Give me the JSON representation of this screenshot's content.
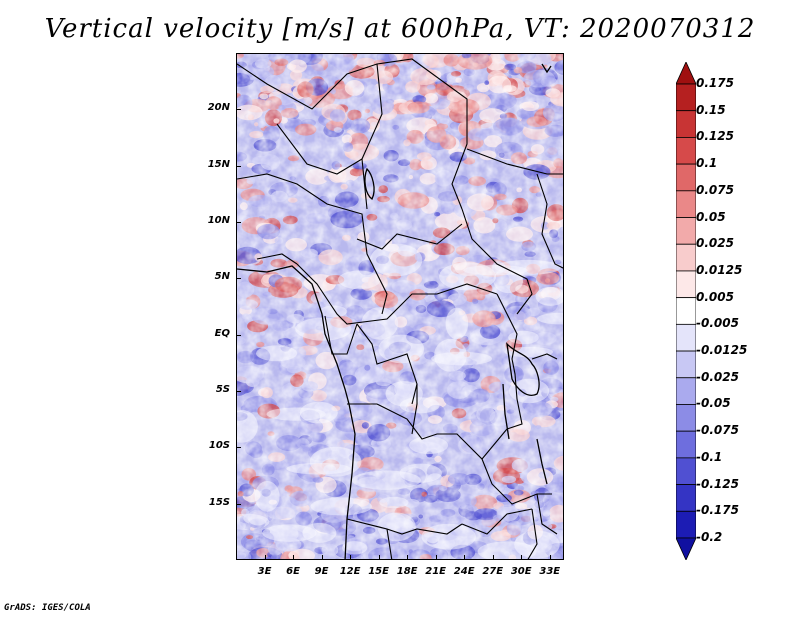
{
  "title": "Vertical velocity [m/s] at 600hPa, VT: 2020070312",
  "footer": "GrADS: IGES/COLA",
  "map": {
    "lat_ticks": [
      "20N",
      "15N",
      "10N",
      "5N",
      "EQ",
      "5S",
      "10S",
      "15S"
    ],
    "lon_ticks": [
      "3E",
      "6E",
      "9E",
      "12E",
      "15E",
      "18E",
      "21E",
      "24E",
      "27E",
      "30E",
      "33E"
    ],
    "lat_range": [
      -20,
      25
    ],
    "lon_range": [
      0,
      34.5
    ]
  },
  "colorbar": {
    "labels": [
      "0.175",
      "0.15",
      "0.125",
      "0.1",
      "0.075",
      "0.05",
      "0.025",
      "0.0125",
      "0.005",
      "-0.005",
      "-0.0125",
      "-0.025",
      "-0.05",
      "-0.075",
      "-0.1",
      "-0.125",
      "-0.175",
      "-0.2"
    ],
    "colors": [
      "#a01010",
      "#b52020",
      "#c83434",
      "#d64a4a",
      "#e06868",
      "#ea8888",
      "#f2aaaa",
      "#f8cccc",
      "#fde8e8",
      "#ffffff",
      "#e4e4fa",
      "#c8c8f4",
      "#aaaaee",
      "#8c8ce6",
      "#6e6ede",
      "#5050d2",
      "#3434c4",
      "#1c1cb4",
      "#1010a0"
    ]
  }
}
